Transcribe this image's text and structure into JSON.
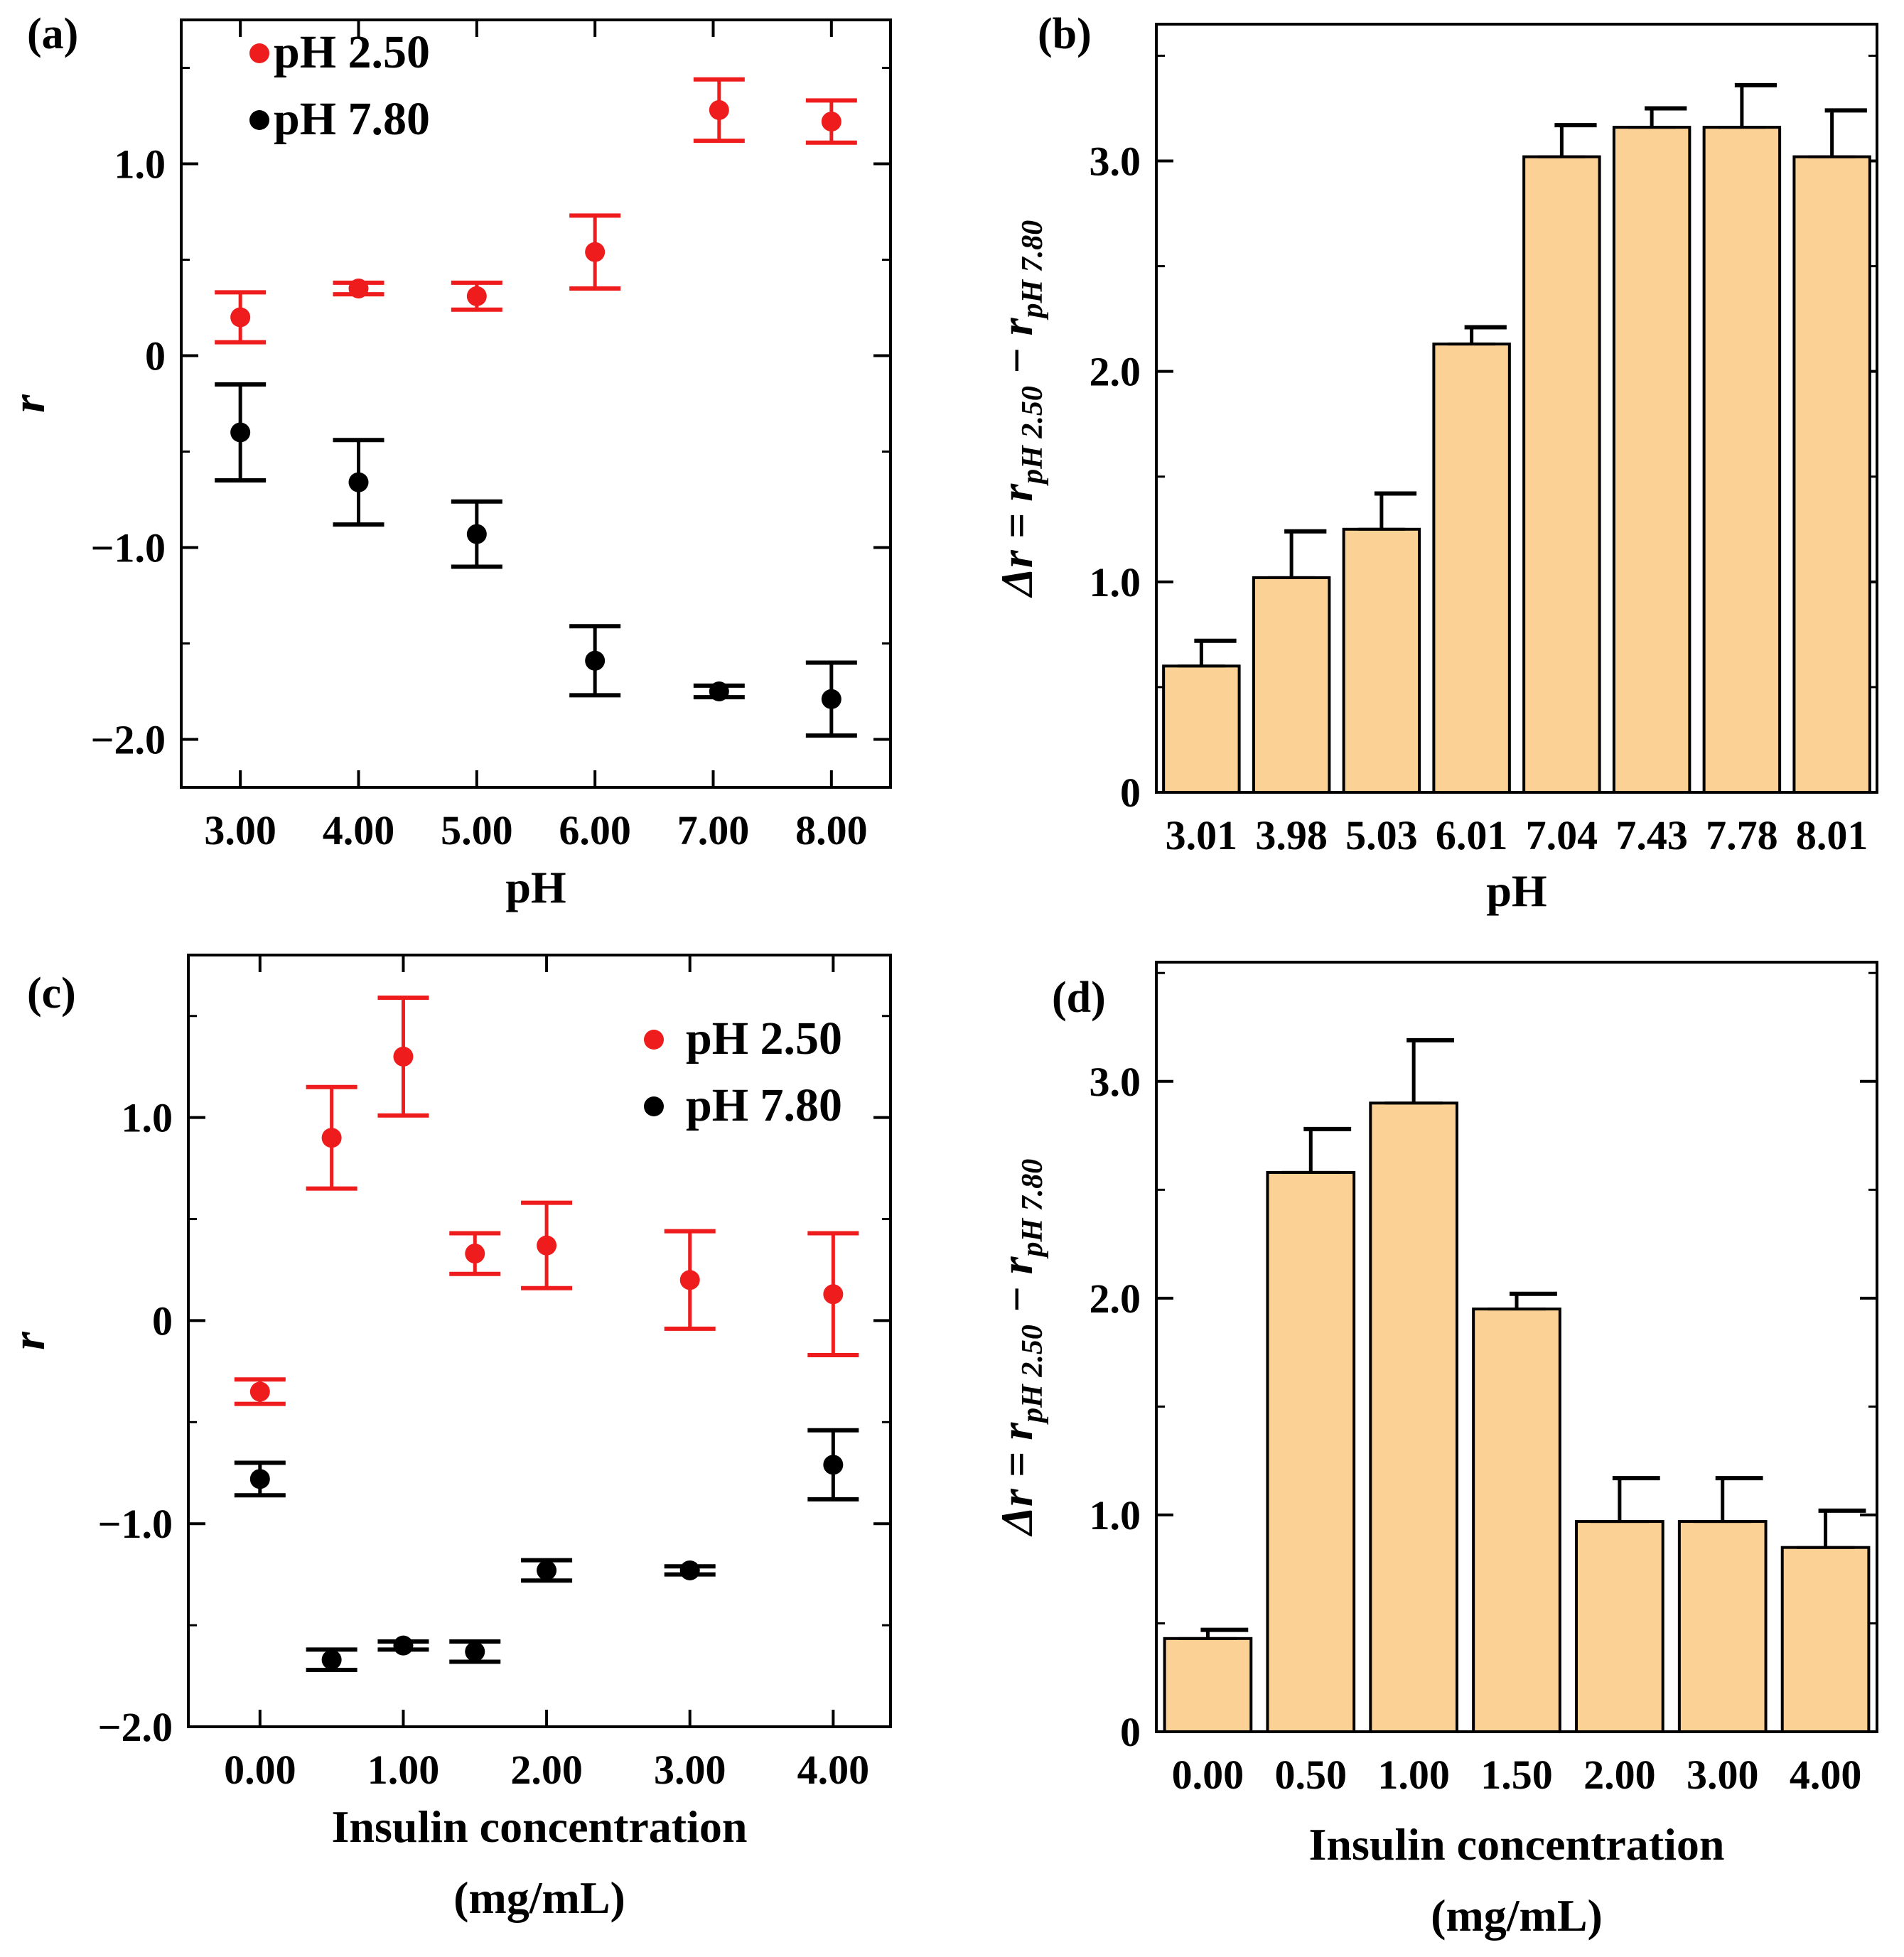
{
  "colors": {
    "red": "#ee1c1c",
    "black": "#000000",
    "bar_fill": "#fbd195",
    "bar_stroke": "#000000"
  },
  "chart_data": [
    {
      "panel": "(a)",
      "type": "scatter",
      "xlabel": "pH",
      "ylabel": "r",
      "xlim": [
        2.5,
        8.5
      ],
      "ylim": [
        -2.25,
        1.75
      ],
      "xticks": [
        3,
        4,
        5,
        6,
        7,
        8
      ],
      "xtick_labels": [
        "3.00",
        "4.00",
        "5.00",
        "6.00",
        "7.00",
        "8.00"
      ],
      "yticks": [
        -2,
        -1,
        0,
        1
      ],
      "ytick_labels": [
        "−2.0",
        "−1.0",
        "0",
        "1.0"
      ],
      "legend_position": "top-left",
      "series": [
        {
          "name": "pH 2.50",
          "color": "#ee1c1c",
          "points": [
            {
              "x": 3.0,
              "y": 0.2,
              "err": 0.13
            },
            {
              "x": 4.0,
              "y": 0.35,
              "err": 0.03
            },
            {
              "x": 5.0,
              "y": 0.31,
              "err": 0.07
            },
            {
              "x": 6.0,
              "y": 0.54,
              "err": 0.19
            },
            {
              "x": 7.05,
              "y": 1.28,
              "err": 0.16
            },
            {
              "x": 8.0,
              "y": 1.22,
              "err": 0.11
            }
          ]
        },
        {
          "name": "pH 7.80",
          "color": "#000000",
          "points": [
            {
              "x": 3.0,
              "y": -0.4,
              "err": 0.25
            },
            {
              "x": 4.0,
              "y": -0.66,
              "err": 0.22
            },
            {
              "x": 5.0,
              "y": -0.93,
              "err": 0.17
            },
            {
              "x": 6.0,
              "y": -1.59,
              "err": 0.18
            },
            {
              "x": 7.05,
              "y": -1.75,
              "err": 0.03
            },
            {
              "x": 8.0,
              "y": -1.79,
              "err": 0.19
            }
          ]
        }
      ]
    },
    {
      "panel": "(b)",
      "type": "bar",
      "xlabel": "pH",
      "ylabel": "Δr = r",
      "ylabel_sub1": "pH 2.50",
      "ylabel_mid": " − r",
      "ylabel_sub2": "pH 7.80",
      "categories": [
        "3.01",
        "3.98",
        "5.03",
        "6.01",
        "7.04",
        "7.43",
        "7.78",
        "8.01"
      ],
      "values": [
        0.6,
        1.02,
        1.25,
        2.13,
        3.02,
        3.16,
        3.16,
        3.02
      ],
      "errors": [
        0.12,
        0.22,
        0.17,
        0.08,
        0.15,
        0.09,
        0.2,
        0.22
      ],
      "ylim": [
        0,
        3.65
      ],
      "yticks": [
        0,
        1,
        2,
        3
      ],
      "ytick_labels": [
        "0",
        "1.0",
        "2.0",
        "3.0"
      ]
    },
    {
      "panel": "(c)",
      "type": "scatter",
      "xlabel": "Insulin concentration",
      "xlabel2": "(mg/mL)",
      "ylabel": "r",
      "xlim": [
        -0.5,
        4.4
      ],
      "ylim": [
        -2.0,
        1.8
      ],
      "xticks": [
        0,
        1,
        2,
        3,
        4
      ],
      "xtick_labels": [
        "0.00",
        "1.00",
        "2.00",
        "3.00",
        "4.00"
      ],
      "yticks": [
        -2,
        -1,
        0,
        1
      ],
      "ytick_labels": [
        "−2.0",
        "−1.0",
        "0",
        "1.0"
      ],
      "legend_position": "top-right",
      "series": [
        {
          "name": "pH 2.50",
          "color": "#ee1c1c",
          "points": [
            {
              "x": 0.0,
              "y": -0.35,
              "err": 0.06
            },
            {
              "x": 0.5,
              "y": 0.9,
              "err": 0.25
            },
            {
              "x": 1.0,
              "y": 1.3,
              "err": 0.29
            },
            {
              "x": 1.5,
              "y": 0.33,
              "err": 0.1
            },
            {
              "x": 2.0,
              "y": 0.37,
              "err": 0.21
            },
            {
              "x": 3.0,
              "y": 0.2,
              "err": 0.24
            },
            {
              "x": 4.0,
              "y": 0.13,
              "err": 0.3
            }
          ]
        },
        {
          "name": "pH 7.80",
          "color": "#000000",
          "points": [
            {
              "x": 0.0,
              "y": -0.78,
              "err": 0.08
            },
            {
              "x": 0.5,
              "y": -1.67,
              "err": 0.05
            },
            {
              "x": 1.0,
              "y": -1.6,
              "err": 0.02
            },
            {
              "x": 1.5,
              "y": -1.63,
              "err": 0.05
            },
            {
              "x": 2.0,
              "y": -1.23,
              "err": 0.05
            },
            {
              "x": 3.0,
              "y": -1.23,
              "err": 0.02
            },
            {
              "x": 4.0,
              "y": -0.71,
              "err": 0.17
            }
          ]
        }
      ]
    },
    {
      "panel": "(d)",
      "type": "bar",
      "xlabel": "Insulin concentration",
      "xlabel2": "(mg/mL)",
      "ylabel": "Δr = r",
      "ylabel_sub1": "pH 2.50",
      "ylabel_mid": " − r",
      "ylabel_sub2": "pH 7.80",
      "categories": [
        "0.00",
        "0.50",
        "1.00",
        "1.50",
        "2.00",
        "3.00",
        "4.00"
      ],
      "values": [
        0.43,
        2.58,
        2.9,
        1.95,
        0.97,
        0.97,
        0.85
      ],
      "errors": [
        0.04,
        0.2,
        0.29,
        0.07,
        0.2,
        0.2,
        0.17
      ],
      "ylim": [
        0,
        3.55
      ],
      "yticks": [
        0,
        1,
        2,
        3
      ],
      "ytick_labels": [
        "0",
        "1.0",
        "2.0",
        "3.0"
      ]
    }
  ]
}
